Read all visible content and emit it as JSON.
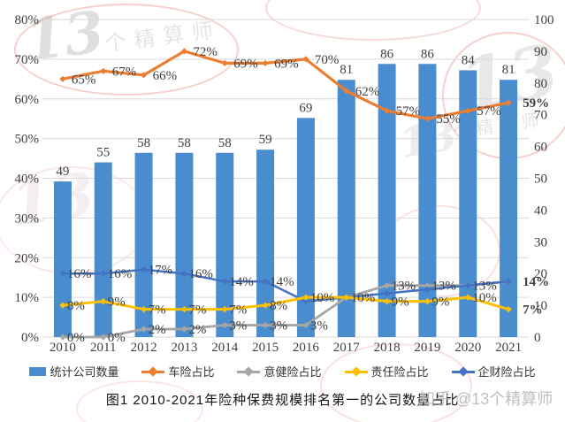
{
  "title": "图1  2010-2021年险种保费规模排名第一的公司数量占比",
  "watermarks": {
    "stamp_number": "13",
    "stamp_text": "个精算师",
    "zhihu_credit": "知乎 @13个精算师"
  },
  "chart_data": {
    "type": "combo-bar-line",
    "categories": [
      "2010",
      "2011",
      "2012",
      "2013",
      "2014",
      "2015",
      "2016",
      "2017",
      "2018",
      "2019",
      "2020",
      "2021"
    ],
    "left_axis": {
      "min": 0,
      "max": 80,
      "step": 10,
      "ticks": [
        "0%",
        "10%",
        "20%",
        "30%",
        "40%",
        "50%",
        "60%",
        "70%",
        "80%"
      ]
    },
    "right_axis": {
      "min": 0,
      "max": 100,
      "step": 10,
      "ticks": [
        "0",
        "10",
        "20",
        "30",
        "40",
        "50",
        "60",
        "70",
        "80",
        "90",
        "100"
      ]
    },
    "grid": true,
    "legend_position": "bottom",
    "bar_series": {
      "name": "统计公司数量",
      "color": "#4A8DCE",
      "axis": "right",
      "values": [
        49,
        55,
        58,
        58,
        58,
        59,
        69,
        81,
        86,
        86,
        84,
        81
      ],
      "labels": [
        "49",
        "55",
        "58",
        "58",
        "58",
        "59",
        "69",
        "81",
        "86",
        "86",
        "84",
        "81"
      ]
    },
    "line_series": [
      {
        "name": "车险占比",
        "color": "#ED7D31",
        "axis": "left",
        "values": [
          65,
          67,
          66,
          72,
          69,
          69,
          70,
          62,
          57,
          55,
          57,
          59
        ],
        "labels": [
          "65%",
          "67%",
          "66%",
          "72%",
          "69%",
          "69%",
          "70%",
          "62%",
          "57%",
          "55%",
          "57%",
          "59%"
        ]
      },
      {
        "name": "意健险占比",
        "color": "#A6A6A6",
        "axis": "left",
        "values": [
          0,
          0,
          2,
          2,
          3,
          3,
          3,
          10,
          13,
          13,
          13,
          14
        ],
        "labels": [
          "0%",
          "0%",
          "2%",
          "2%",
          "3%",
          "3%",
          "3%",
          "",
          "13%",
          "13%",
          "",
          ""
        ]
      },
      {
        "name": "责任险占比",
        "color": "#FFC000",
        "axis": "left",
        "values": [
          8,
          9,
          7,
          7,
          7,
          8,
          10,
          10,
          9,
          9,
          10,
          7
        ],
        "labels": [
          "8%",
          "9%",
          "7%",
          "7%",
          "7%",
          "8%",
          "10%",
          "",
          "9%",
          "9%",
          "10%",
          "7%"
        ]
      },
      {
        "name": "企财险占比",
        "color": "#4472C4",
        "axis": "left",
        "values": [
          16,
          16,
          17,
          16,
          14,
          14,
          9,
          10,
          11,
          12,
          13,
          14
        ],
        "labels": [
          "16%",
          "16%",
          "17%",
          "16%",
          "14%",
          "14%",
          "",
          "10%",
          "",
          "",
          "13%",
          "14%"
        ]
      }
    ]
  }
}
